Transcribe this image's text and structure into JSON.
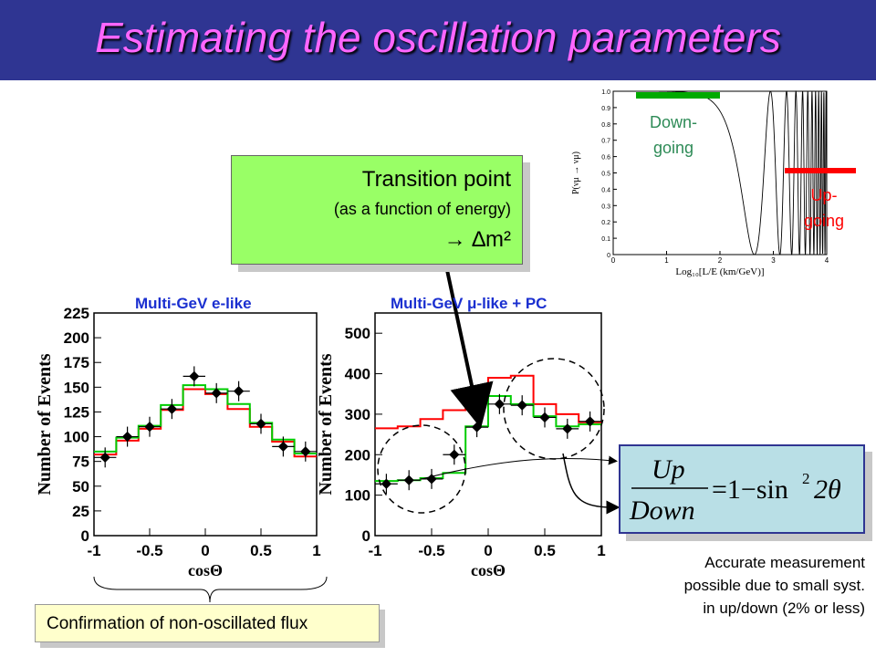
{
  "slide": {
    "title": "Estimating the oscillation parameters",
    "transition": {
      "line1": "Transition point",
      "line2": "(as a function of energy)",
      "line3": "→ ∆m²"
    },
    "confirm_text": "Confirmation of non-oscillated flux",
    "accurate_lines": [
      "Accurate measurement",
      "possible due to small syst.",
      "in up/down (2% or less)"
    ],
    "down_label": [
      "Down-",
      "going"
    ],
    "up_label": [
      "Up-",
      "going"
    ],
    "formula": "Up/Down = 1 − sin² 2θ",
    "colors": {
      "title_bg": "#2f3592",
      "title_text": "#ff66ff",
      "red_hist": "#ff0000",
      "green_hist": "#00cc00",
      "green_box": "#99ff66",
      "formula_box": "#b9dfe6"
    }
  },
  "chart_data": [
    {
      "type": "line",
      "title": "Multi-GeV e-like",
      "xlabel": "cosΘ",
      "ylabel": "Number of Events",
      "xlim": [
        -1,
        1
      ],
      "ylim": [
        0,
        225
      ],
      "xticks": [
        "-1",
        "-0.5",
        "0",
        "0.5",
        "1"
      ],
      "yticks": [
        "0",
        "25",
        "50",
        "75",
        "100",
        "125",
        "150",
        "175",
        "200",
        "225"
      ],
      "bin_edges": [
        -1,
        -0.8,
        -0.6,
        -0.4,
        -0.2,
        0,
        0.2,
        0.4,
        0.6,
        0.8,
        1
      ],
      "series": [
        {
          "values": [
            82,
            96,
            108,
            127,
            148,
            143,
            128,
            110,
            95,
            80
          ]
        },
        {
          "values": [
            85,
            99,
            111,
            132,
            152,
            148,
            133,
            114,
            97,
            83
          ]
        },
        {
          "values": [
            79,
            100,
            110,
            128,
            161,
            144,
            146,
            113,
            90,
            85
          ]
        }
      ]
    },
    {
      "type": "line",
      "title": "Multi-GeV μ-like + PC",
      "xlabel": "cosΘ",
      "ylabel": "Number of Events",
      "xlim": [
        -1,
        1
      ],
      "ylim": [
        0,
        550
      ],
      "xticks": [
        "-1",
        "-0.5",
        "0",
        "0.5",
        "1"
      ],
      "yticks": [
        "0",
        "100",
        "200",
        "300",
        "400",
        "500"
      ],
      "bin_edges": [
        -1,
        -0.8,
        -0.6,
        -0.4,
        -0.2,
        0,
        0.2,
        0.4,
        0.6,
        0.8,
        1
      ],
      "series": [
        {
          "values": [
            265,
            270,
            288,
            310,
            345,
            390,
            395,
            325,
            300,
            280
          ]
        },
        {
          "values": [
            135,
            137,
            142,
            155,
            270,
            345,
            325,
            295,
            270,
            275
          ]
        },
        {
          "values": [
            128,
            137,
            140,
            200,
            268,
            325,
            322,
            292,
            264,
            282
          ]
        }
      ]
    },
    {
      "type": "line",
      "title": "",
      "xlabel": "Log₁₀[L/E (km/GeV)]",
      "ylabel": "P(νμ → νμ)",
      "xlim": [
        0,
        4
      ],
      "ylim": [
        0,
        1.0
      ],
      "xticks": [
        "0",
        "1",
        "2",
        "3",
        "4"
      ],
      "yticks": [
        "0",
        "0.1",
        "0.2",
        "0.3",
        "0.4",
        "0.5",
        "0.6",
        "0.7",
        "0.8",
        "0.9",
        "1.0"
      ]
    }
  ]
}
